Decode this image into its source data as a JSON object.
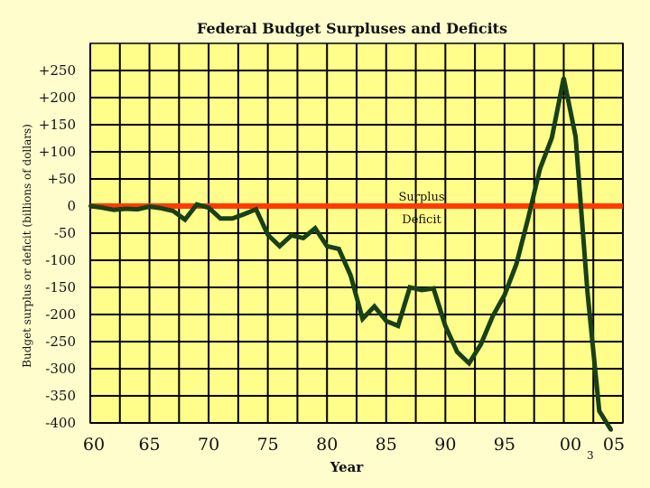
{
  "colors": {
    "background": "#fffdcc",
    "plot_background": "#fffe8a",
    "grid": "#000000",
    "zero_line": "#ff3c00",
    "series_line": "#184018"
  },
  "page_number": "3",
  "chart_data": {
    "type": "line",
    "title": "Federal Budget Surpluses and Deficits",
    "xlabel": "Year",
    "ylabel": "Budget surplus or deficit (billions of dollars)",
    "x_tick_labels": [
      "60",
      "65",
      "70",
      "75",
      "80",
      "85",
      "90",
      "95",
      "00",
      "05"
    ],
    "x_tick_years": [
      1960,
      1965,
      1970,
      1975,
      1980,
      1985,
      1990,
      1995,
      2000,
      2005
    ],
    "y_tick_labels": [
      "+250",
      "+200",
      "+150",
      "+100",
      "+50",
      "0",
      "-50",
      "-100",
      "-150",
      "-200",
      "-250",
      "-300",
      "-350",
      "-400"
    ],
    "y_tick_values": [
      250,
      200,
      150,
      100,
      50,
      0,
      -50,
      -100,
      -150,
      -200,
      -250,
      -300,
      -350,
      -400
    ],
    "xlim": [
      1960,
      2005
    ],
    "ylim": [
      -400,
      250
    ],
    "grid": true,
    "reference_line": {
      "y": 0,
      "label_above": "Surplus",
      "label_below": "Deficit"
    },
    "series": [
      {
        "x": [
          1960,
          1961,
          1962,
          1963,
          1964,
          1965,
          1966,
          1967,
          1968,
          1969,
          1970,
          1971,
          1972,
          1973,
          1974,
          1975,
          1976,
          1977,
          1978,
          1979,
          1980,
          1981,
          1982,
          1983,
          1984,
          1985,
          1986,
          1987,
          1988,
          1989,
          1990,
          1991,
          1992,
          1993,
          1994,
          1995,
          1996,
          1997,
          1998,
          1999,
          2000,
          2001,
          2002,
          2003,
          2004
        ],
        "y": [
          0,
          -3,
          -7,
          -5,
          -6,
          -1,
          -4,
          -9,
          -25,
          3,
          -3,
          -23,
          -23,
          -15,
          -6,
          -53,
          -74,
          -54,
          -59,
          -41,
          -74,
          -79,
          -128,
          -208,
          -185,
          -212,
          -221,
          -150,
          -155,
          -152,
          -221,
          -269,
          -290,
          -255,
          -203,
          -164,
          -107,
          -22,
          69,
          126,
          236,
          128,
          -158,
          -378,
          -413
        ]
      }
    ]
  }
}
